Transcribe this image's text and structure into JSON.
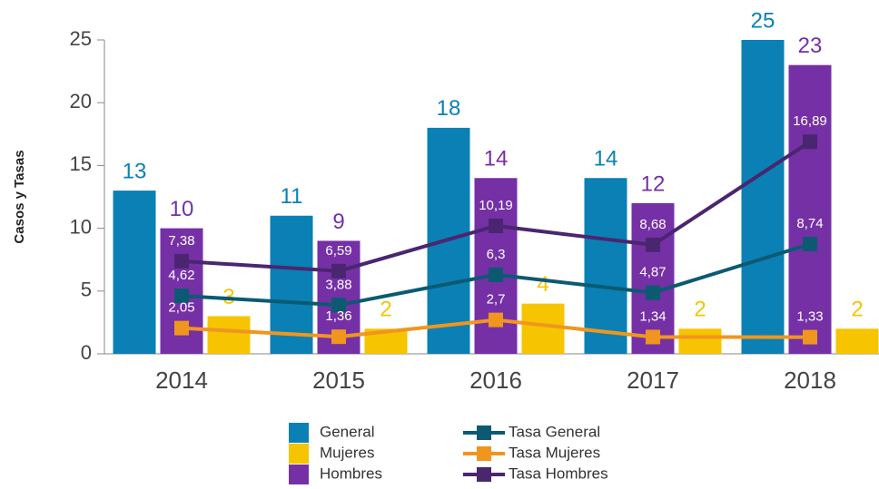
{
  "chart_data": {
    "type": "bar",
    "y_label": "Casos y Tasas",
    "categories": [
      "2014",
      "2015",
      "2016",
      "2017",
      "2018"
    ],
    "series": [
      {
        "name": "General",
        "type": "bar",
        "color": "#0b80b4",
        "values": [
          13,
          11,
          18,
          14,
          25
        ]
      },
      {
        "name": "Mujeres",
        "type": "bar",
        "color": "#f6c400",
        "values": [
          3,
          2,
          4,
          2,
          2
        ]
      },
      {
        "name": "Hombres",
        "type": "bar",
        "color": "#7530a6",
        "values": [
          10,
          9,
          14,
          12,
          23
        ]
      },
      {
        "name": "Tasa General",
        "type": "line",
        "color": "#0b5a72",
        "values": [
          4.62,
          3.88,
          6.3,
          4.87,
          8.74
        ],
        "value_labels": [
          "4,62",
          "3,88",
          "6,3",
          "4,87",
          "8,74"
        ]
      },
      {
        "name": "Tasa Mujeres",
        "type": "line",
        "color": "#f0961e",
        "values": [
          2.05,
          1.36,
          2.7,
          1.34,
          1.33
        ],
        "value_labels": [
          "2,05",
          "1,36",
          "2,7",
          "1,34",
          "1,33"
        ]
      },
      {
        "name": "Tasa Hombres",
        "type": "line",
        "color": "#4a2670",
        "values": [
          7.38,
          6.59,
          10.19,
          8.68,
          16.89
        ],
        "value_labels": [
          "7,38",
          "6,59",
          "10,19",
          "8,68",
          "16,89"
        ]
      }
    ],
    "ylim": [
      0,
      25
    ],
    "yticks": [
      0,
      5,
      10,
      15,
      20,
      25
    ],
    "grid": false,
    "legend": "bottom"
  }
}
